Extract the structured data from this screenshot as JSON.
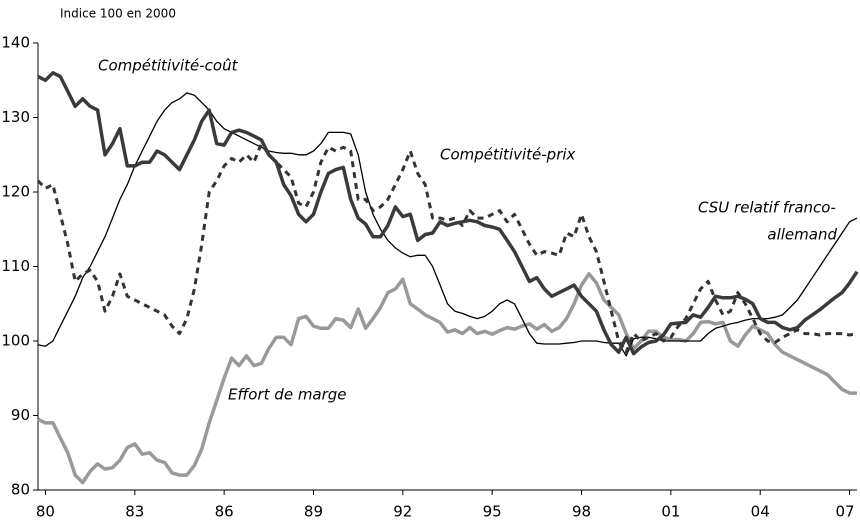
{
  "chart_data": {
    "type": "line",
    "ylabel": "Indice 100 en 2000",
    "x": [
      1979.75,
      1980,
      1980.25,
      1980.5,
      1980.75,
      1981,
      1981.25,
      1981.5,
      1981.75,
      1982,
      1982.25,
      1982.5,
      1982.75,
      1983,
      1983.25,
      1983.5,
      1983.75,
      1984,
      1984.25,
      1984.5,
      1984.75,
      1985,
      1985.25,
      1985.5,
      1985.75,
      1986,
      1986.25,
      1986.5,
      1986.75,
      1987,
      1987.25,
      1987.5,
      1987.75,
      1988,
      1988.25,
      1988.5,
      1988.75,
      1989,
      1989.25,
      1989.5,
      1989.75,
      1990,
      1990.25,
      1990.5,
      1990.75,
      1991,
      1991.25,
      1991.5,
      1991.75,
      1992,
      1992.25,
      1992.5,
      1992.75,
      1993,
      1993.25,
      1993.5,
      1993.75,
      1994,
      1994.25,
      1994.5,
      1994.75,
      1995,
      1995.25,
      1995.5,
      1995.75,
      1996,
      1996.25,
      1996.5,
      1996.75,
      1997,
      1997.25,
      1997.5,
      1997.75,
      1998,
      1998.25,
      1998.5,
      1998.75,
      1999,
      1999.25,
      1999.5,
      1999.75,
      2000,
      2000.25,
      2000.5,
      2000.75,
      2001,
      2001.25,
      2001.5,
      2001.75,
      2002,
      2002.25,
      2002.5,
      2002.75,
      2003,
      2003.25,
      2003.5,
      2003.75,
      2004,
      2004.25,
      2004.5,
      2004.75,
      2005,
      2005.25,
      2005.5,
      2005.75,
      2006,
      2006.25,
      2006.5,
      2006.75,
      2007,
      2007.25
    ],
    "series": [
      {
        "color": "#999999",
        "style": "solid-thick",
        "values": [
          89.5,
          89,
          89,
          87,
          85,
          82,
          81,
          82.5,
          83.5,
          82.8,
          83,
          84,
          85.7,
          86.2,
          84.8,
          85,
          84,
          83.7,
          82.3,
          82,
          82,
          83.3,
          85.5,
          89,
          92,
          95,
          97.7,
          96.7,
          98,
          96.7,
          97,
          99,
          100.5,
          100.5,
          99.5,
          103,
          103.3,
          102,
          101.7,
          101.7,
          103,
          102.8,
          101.8,
          104.3,
          101.7,
          103,
          104.5,
          106.5,
          107,
          108.3,
          105,
          104.3,
          103.5,
          103,
          102.5,
          101.2,
          101.5,
          101,
          101.8,
          101,
          101.3,
          100.9,
          101.4,
          101.8,
          101.6,
          102,
          102.3,
          101.6,
          102.2,
          101.3,
          101.8,
          103,
          105,
          107.5,
          109,
          107.8,
          105.5,
          104.5,
          103.5,
          101,
          99,
          100,
          101.3,
          101.3,
          100.5,
          100.2,
          100.2,
          100,
          101,
          102.5,
          102.6,
          102.3,
          102.5,
          100,
          99.3,
          100.8,
          102,
          101.5,
          101,
          99.5,
          98.5,
          98,
          97.5,
          97,
          96.5,
          96,
          95.5,
          94.5,
          93.5,
          93,
          93
        ]
      },
      {
        "color": "#000000",
        "style": "solid-thin",
        "values": [
          99.5,
          99.3,
          100,
          102,
          104,
          106,
          108.5,
          110,
          112,
          114,
          116.5,
          119,
          121,
          123.5,
          125.5,
          127.5,
          129.5,
          131,
          132,
          132.5,
          133.3,
          133,
          132,
          131,
          129.5,
          128.5,
          128,
          127.5,
          127,
          126.5,
          126,
          125.5,
          125.3,
          125.2,
          125.2,
          125,
          125,
          125.5,
          126.5,
          128,
          128,
          128,
          127.8,
          125,
          120,
          117,
          115,
          113.5,
          112.5,
          111.8,
          111.3,
          111.5,
          111.5,
          110,
          107.5,
          105,
          104,
          103.7,
          103.3,
          103,
          103.3,
          104,
          105,
          105.5,
          105,
          103,
          101,
          99.7,
          99.6,
          99.6,
          99.6,
          99.7,
          99.8,
          100,
          100,
          100,
          99.8,
          99.7,
          99.7,
          98,
          100.3,
          100.5,
          100.5,
          100.3,
          100,
          100,
          100,
          100,
          100,
          100,
          101,
          101.7,
          102,
          102.3,
          102.5,
          102.8,
          103,
          103,
          103,
          103.2,
          103.5,
          104.5,
          105.5,
          107,
          108.5,
          110,
          111.5,
          113,
          114.5,
          116,
          116.5
        ]
      },
      {
        "color": "#333333",
        "style": "dashed",
        "values": [
          121.5,
          120.5,
          121,
          117,
          113,
          108,
          109,
          109.5,
          108,
          104,
          106,
          109,
          106,
          105.5,
          105,
          104.5,
          104,
          103.5,
          102,
          101,
          103,
          107,
          113,
          120,
          121.5,
          123.5,
          124.5,
          124,
          125,
          124,
          126.5,
          125,
          124,
          123,
          122,
          118.5,
          118,
          120,
          124,
          126,
          125.5,
          126,
          125.5,
          119,
          119,
          117.5,
          118,
          119,
          121,
          123,
          125.5,
          122.5,
          121,
          116.5,
          116.5,
          116.2,
          116.5,
          115.5,
          117.5,
          116.5,
          116.5,
          117,
          117.5,
          116,
          117,
          115,
          113,
          111.5,
          112,
          111.8,
          111.5,
          114.5,
          114,
          117,
          114,
          112,
          108,
          104,
          100,
          98.5,
          101,
          100,
          100.5,
          101,
          100,
          100.5,
          102,
          103,
          105,
          107,
          108,
          105.5,
          103.5,
          104,
          106.5,
          105,
          103,
          101,
          100,
          99.8,
          100.5,
          101,
          101.5,
          101,
          101,
          100.8,
          101,
          101,
          101,
          100.8,
          101
        ]
      },
      {
        "color": "#3a3a3a",
        "style": "solid-thick",
        "values": [
          135.5,
          135,
          136,
          135.5,
          133.5,
          131.5,
          132.5,
          131.5,
          131,
          125,
          126.5,
          128.5,
          123.5,
          123.5,
          124,
          124,
          125.5,
          125,
          124,
          123,
          125,
          127,
          129.5,
          131,
          126.5,
          126.3,
          128,
          128.3,
          128,
          127.5,
          127,
          125,
          124,
          121,
          119.5,
          117,
          116,
          117,
          120,
          122.5,
          123,
          123.3,
          119,
          116.5,
          115.7,
          114,
          114,
          115.5,
          118,
          116.7,
          117,
          113.5,
          114.3,
          114.5,
          116,
          115.5,
          115.8,
          116,
          116.2,
          116,
          115.5,
          115.3,
          115,
          113.5,
          112,
          110,
          108,
          108.5,
          107,
          106,
          106.5,
          107,
          107.5,
          106,
          105,
          104,
          101.5,
          99.5,
          98.5,
          100.5,
          98.3,
          99.2,
          99.8,
          100,
          100.8,
          102.3,
          102.4,
          102.5,
          103.5,
          103.2,
          104.5,
          106,
          105.8,
          105.8,
          106,
          105.6,
          105,
          103,
          102.5,
          102.5,
          101.8,
          101.5,
          101.8,
          102.8,
          103.5,
          104.2,
          105,
          105.8,
          106.5,
          107.8,
          109.3
        ]
      }
    ],
    "annotations": [
      {
        "text": "Compétitivité-coût"
      },
      {
        "text": "Compétitivité-prix"
      },
      {
        "lines": [
          "CSU relatif franco-",
          "allemand"
        ]
      },
      {
        "text": "Effort de marge"
      }
    ],
    "xlim": [
      1979.75,
      2007.25
    ],
    "xticks": [
      {
        "value": 1980,
        "label": "80"
      },
      {
        "value": 1983,
        "label": "83"
      },
      {
        "value": 1986,
        "label": "86"
      },
      {
        "value": 1989,
        "label": "89"
      },
      {
        "value": 1992,
        "label": "92"
      },
      {
        "value": 1995,
        "label": "95"
      },
      {
        "value": 1998,
        "label": "98"
      },
      {
        "value": 2001,
        "label": "01"
      },
      {
        "value": 2004,
        "label": "04"
      },
      {
        "value": 2007,
        "label": "07"
      }
    ],
    "ylim": [
      80,
      140
    ],
    "yticks": [
      80,
      90,
      100,
      110,
      120,
      130,
      140
    ],
    "grid": false
  }
}
